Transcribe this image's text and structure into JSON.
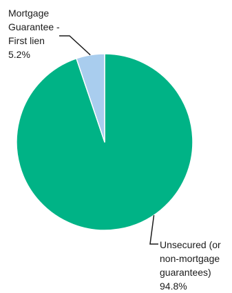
{
  "chart_data": {
    "type": "pie",
    "title": "",
    "slices": [
      {
        "label_lines": [
          "Unsecured (or",
          "non-mortgage",
          "guarantees)"
        ],
        "value": 94.8,
        "value_text": "94.8%",
        "color": "#00b386"
      },
      {
        "label_lines": [
          "Mortgage",
          "Guarantee -",
          "First lien"
        ],
        "value": 5.2,
        "value_text": "5.2%",
        "color": "#a9cdee"
      }
    ],
    "start_angle_deg": 0,
    "direction": "clockwise",
    "legend": "none",
    "slice_border_color": "#ffffff",
    "leader_line_color": "#1a1a1a"
  }
}
